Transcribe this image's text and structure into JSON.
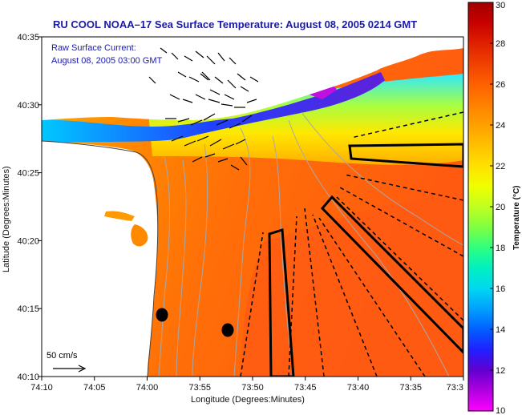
{
  "title": "RU COOL  NOAA–17  Sea Surface Temperature:  August 08, 2005 0214 GMT",
  "current_label": "Raw Surface Current:",
  "current_time": "August 08, 2005 03:00 GMT",
  "scale_label": "50 cm/s",
  "x_axis_label": "Longitude (Degrees:Minutes)",
  "y_axis_label": "Latitude (Degrees:Minutes)",
  "colorbar_label": "Temperature (°C)",
  "x_ticks": [
    "74:10",
    "74:05",
    "74:00",
    "73:55",
    "73:50",
    "73:45",
    "73:40",
    "73:35",
    "73:3"
  ],
  "y_ticks": [
    "40:35",
    "40:30",
    "40:25",
    "40:20",
    "40:15",
    "40:10"
  ],
  "colorbar_ticks": [
    "30",
    "28",
    "26",
    "24",
    "22",
    "20",
    "18",
    "16",
    "14",
    "12",
    "10"
  ],
  "colorbar_range": [
    10,
    30
  ],
  "colorbar_stops": [
    {
      "t": 10,
      "color": "#ff00ff"
    },
    {
      "t": 11,
      "color": "#b000e0"
    },
    {
      "t": 12,
      "color": "#6000d0"
    },
    {
      "t": 13,
      "color": "#2020ff"
    },
    {
      "t": 14,
      "color": "#0060ff"
    },
    {
      "t": 15,
      "color": "#00a0ff"
    },
    {
      "t": 16,
      "color": "#00d8f0"
    },
    {
      "t": 17,
      "color": "#00f0c0"
    },
    {
      "t": 18,
      "color": "#30ff80"
    },
    {
      "t": 19,
      "color": "#80ff40"
    },
    {
      "t": 20,
      "color": "#c0ff20"
    },
    {
      "t": 21,
      "color": "#f0ff00"
    },
    {
      "t": 22,
      "color": "#ffe000"
    },
    {
      "t": 23,
      "color": "#ffc000"
    },
    {
      "t": 24,
      "color": "#ffa000"
    },
    {
      "t": 25,
      "color": "#ff8000"
    },
    {
      "t": 26,
      "color": "#ff6000"
    },
    {
      "t": 27,
      "color": "#f04000"
    },
    {
      "t": 28,
      "color": "#e02000"
    },
    {
      "t": 29,
      "color": "#c80000"
    },
    {
      "t": 30,
      "color": "#a00000"
    }
  ],
  "colors": {
    "title": "#1a1aa8",
    "land": "#ffffff",
    "warm_water": "#ff7a10",
    "cold_band": "#3a40ff",
    "track_lines": "#000000",
    "isobaths": "#a8a8a8"
  }
}
